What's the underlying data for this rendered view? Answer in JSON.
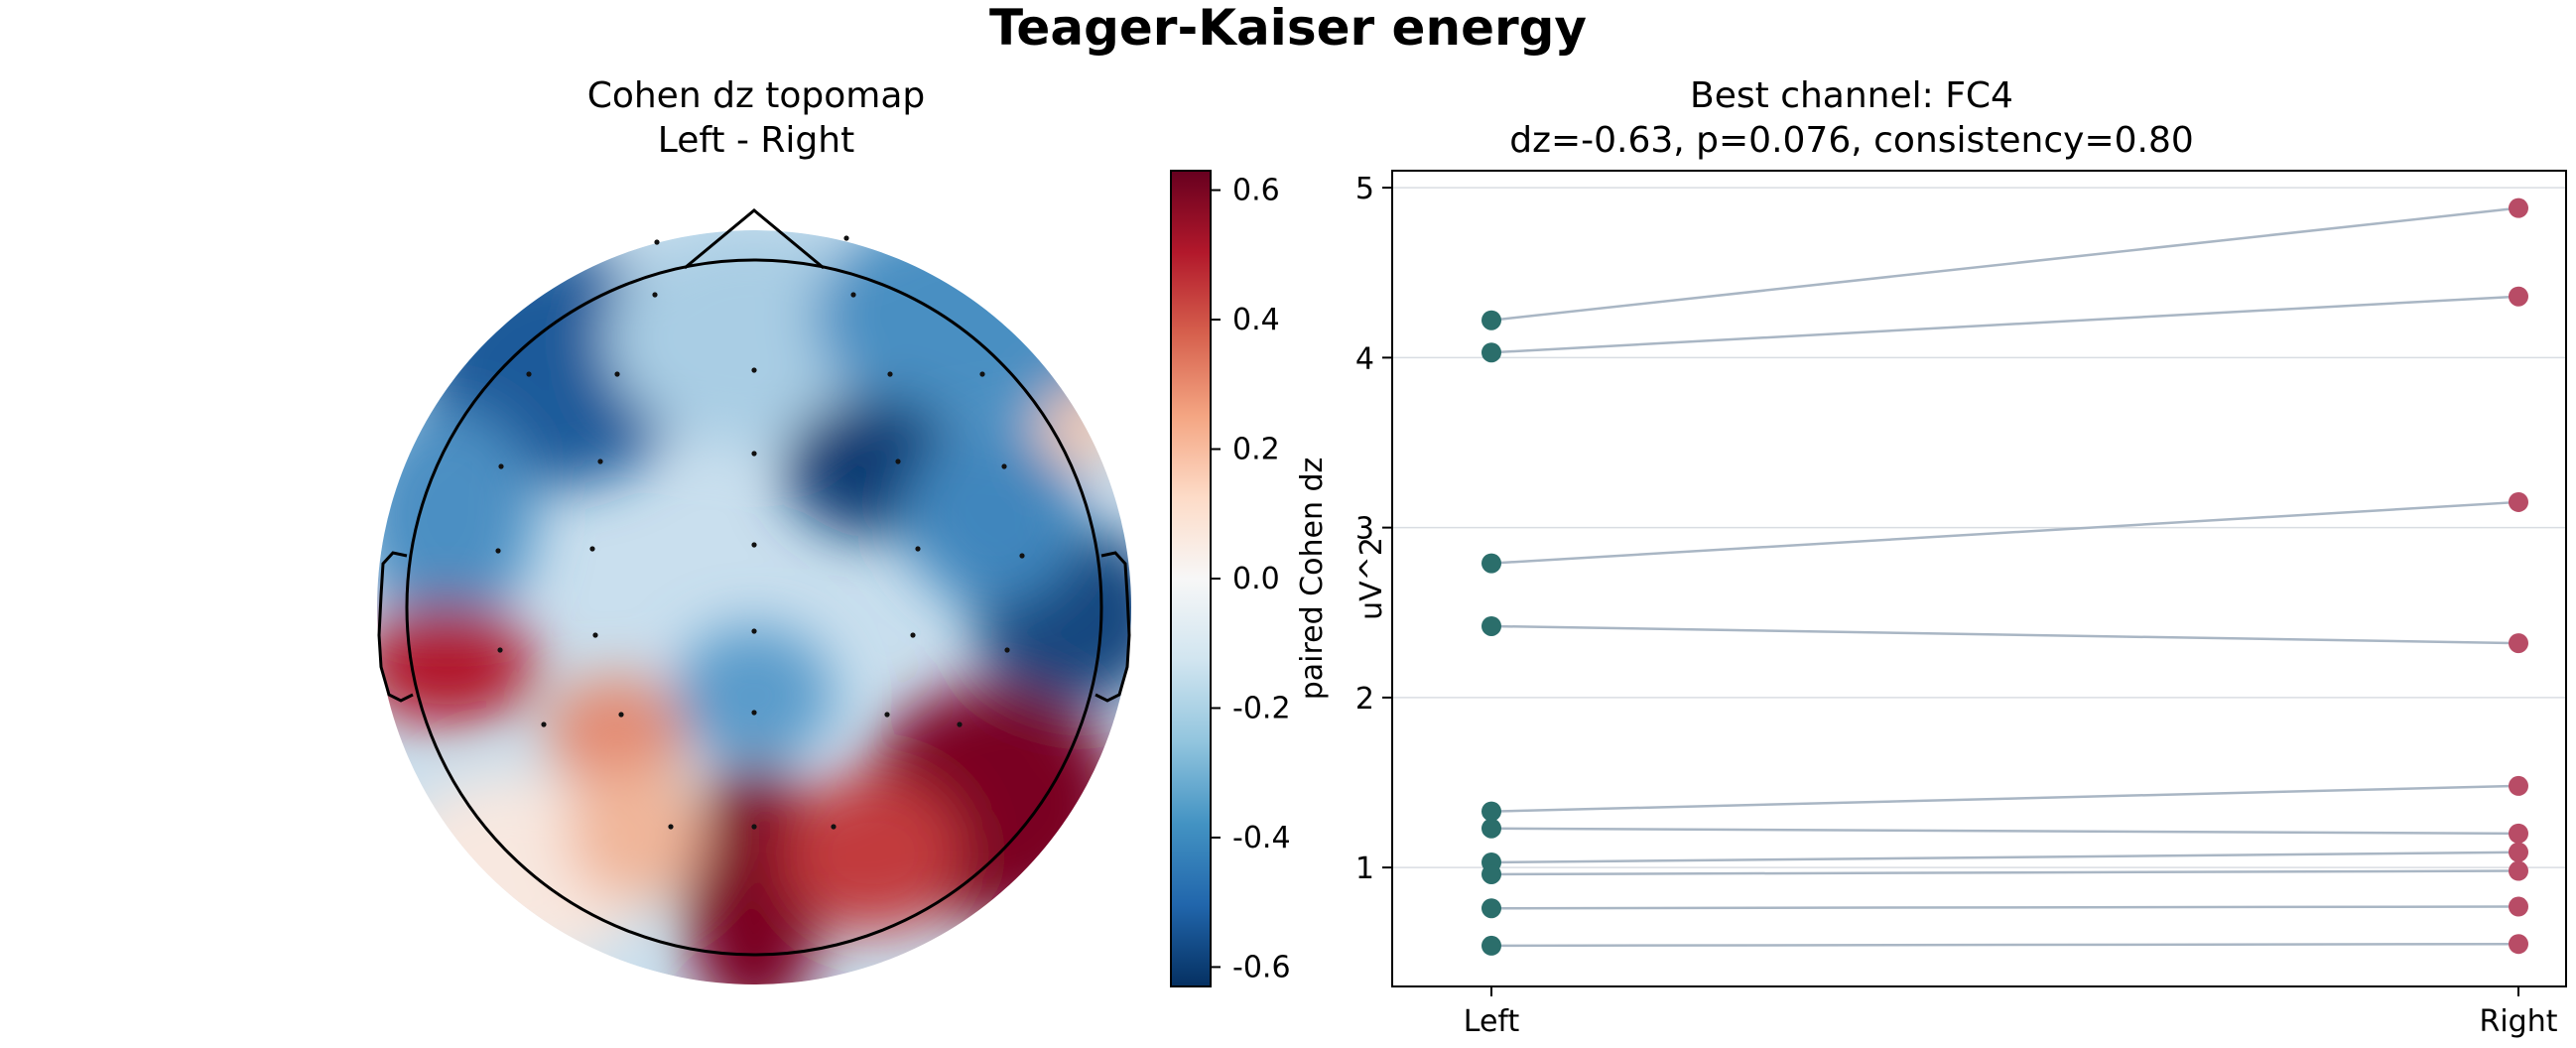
{
  "figure": {
    "title": "Teager-Kaiser energy"
  },
  "colors": {
    "left_points": "#2b6e6b",
    "right_points": "#b84c66",
    "lines": "#a9b6c4",
    "grid": "#d9dde2",
    "cmap_neg": "#053061",
    "cmap_mid": "#f7f7f7",
    "cmap_pos": "#67001f"
  },
  "topomap": {
    "title_line1": "Cohen dz topomap",
    "title_line2": "Left - Right",
    "colorbar_label": "paired Cohen dz",
    "colorbar_ticks": [
      "0.6",
      "0.4",
      "0.2",
      "0.0",
      "-0.2",
      "-0.4",
      "-0.6"
    ],
    "vmin": -0.63,
    "vmax": 0.63
  },
  "chart_data": [
    {
      "type": "heatmap",
      "title": "Cohen dz topomap\nLeft - Right",
      "colorbar_label": "paired Cohen dz",
      "value_range": [
        -0.63,
        0.63
      ],
      "colormap": "RdBu_r",
      "approx_field_samples": [
        {
          "region": "front-left",
          "value": -0.55
        },
        {
          "region": "front-center",
          "value": -0.25
        },
        {
          "region": "front-right",
          "value": -0.45
        },
        {
          "region": "central-right",
          "value": -0.6
        },
        {
          "region": "temporal-right",
          "value": -0.55
        },
        {
          "region": "temporal-left",
          "value": 0.55
        },
        {
          "region": "parietal-center",
          "value": -0.3
        },
        {
          "region": "parietal-left",
          "value": 0.25
        },
        {
          "region": "occipital-center",
          "value": 0.63
        },
        {
          "region": "parietal-right",
          "value": 0.63
        },
        {
          "region": "occipital-left",
          "value": 0.05
        }
      ]
    },
    {
      "type": "line",
      "title_line1": "Best channel: FC4",
      "title_line2": "dz=-0.63, p=0.076, consistency=0.80",
      "xlabel": "",
      "ylabel": "uV^2",
      "categories": [
        "Left",
        "Right"
      ],
      "ylim": [
        0.3,
        5.1
      ],
      "yticks": [
        "1",
        "2",
        "3",
        "4",
        "5"
      ],
      "grid": "horizontal",
      "pairs": [
        {
          "left": 4.22,
          "right": 4.88
        },
        {
          "left": 4.03,
          "right": 4.36
        },
        {
          "left": 2.79,
          "right": 3.15
        },
        {
          "left": 2.42,
          "right": 2.32
        },
        {
          "left": 1.33,
          "right": 1.48
        },
        {
          "left": 1.23,
          "right": 1.2
        },
        {
          "left": 1.03,
          "right": 1.09
        },
        {
          "left": 0.96,
          "right": 0.98
        },
        {
          "left": 0.76,
          "right": 0.77
        },
        {
          "left": 0.54,
          "right": 0.55
        }
      ]
    }
  ]
}
